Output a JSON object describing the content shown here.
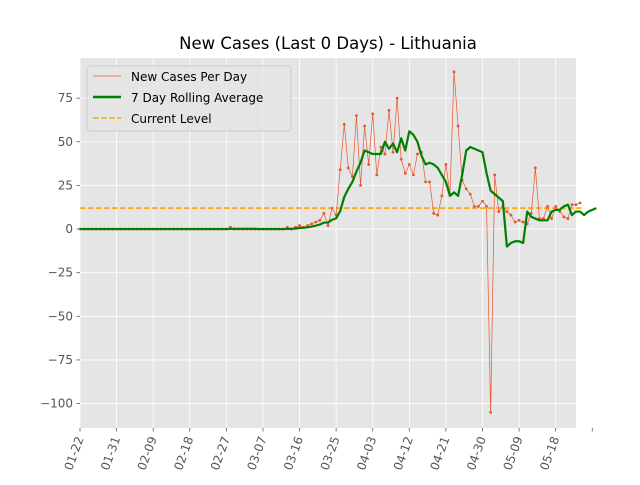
{
  "chart_data": {
    "type": "line",
    "title": "New Cases (Last 0 Days) - Lithuania",
    "xlabel": "",
    "ylabel": "",
    "x_start": "2020-01-22",
    "x_end": "2020-05-20",
    "xlim": [
      "2020-01-22",
      "2020-05-23"
    ],
    "ylim": [
      -114,
      98
    ],
    "grid": true,
    "legend_position": "top-left",
    "x_ticks": [
      "01-22",
      "01-31",
      "02-09",
      "02-18",
      "02-27",
      "03-07",
      "03-16",
      "03-25",
      "04-03",
      "04-12",
      "04-21",
      "04-30",
      "05-09",
      "05-18"
    ],
    "x_tick_dates": [
      "2020-01-22",
      "2020-01-31",
      "2020-02-09",
      "2020-02-18",
      "2020-02-27",
      "2020-03-07",
      "2020-03-16",
      "2020-03-25",
      "2020-04-03",
      "2020-04-12",
      "2020-04-21",
      "2020-04-30",
      "2020-05-09",
      "2020-05-18"
    ],
    "y_ticks": [
      -100,
      -75,
      -50,
      -25,
      0,
      25,
      50,
      75
    ],
    "y_tick_labels": [
      "−100",
      "−75",
      "−50",
      "−25",
      "0",
      "25",
      "50",
      "75"
    ],
    "current_level": 12,
    "series": [
      {
        "name": "New Cases Per Day",
        "color": "#e8562a",
        "style": "thin-line-with-markers",
        "values": [
          0,
          0,
          0,
          0,
          0,
          0,
          0,
          0,
          0,
          0,
          0,
          0,
          0,
          0,
          0,
          0,
          0,
          0,
          0,
          0,
          0,
          0,
          0,
          0,
          0,
          0,
          0,
          0,
          0,
          0,
          0,
          0,
          0,
          0,
          0,
          0,
          0,
          1,
          0,
          0,
          0,
          0,
          0,
          0,
          0,
          0,
          0,
          0,
          0,
          0,
          0,
          1,
          0,
          1,
          2,
          1,
          2,
          3,
          4,
          5,
          9,
          2,
          12,
          8,
          34,
          60,
          35,
          30,
          65,
          25,
          59,
          37,
          66,
          31,
          47,
          43,
          68,
          44,
          75,
          40,
          32,
          37,
          31,
          43,
          44,
          27,
          27,
          9,
          8,
          19,
          37,
          20,
          90,
          59,
          28,
          23,
          20,
          13,
          13,
          16,
          13,
          -105,
          31,
          10,
          13,
          10,
          8,
          4,
          5,
          4,
          3,
          9,
          35,
          6,
          6,
          13,
          6,
          13,
          10,
          7,
          6,
          14,
          14,
          15
        ]
      },
      {
        "name": "7 Day Rolling Average",
        "color": "#008000",
        "style": "thick-line",
        "values": [
          0,
          0,
          0,
          0,
          0,
          0,
          0,
          0,
          0,
          0,
          0,
          0,
          0,
          0,
          0,
          0,
          0,
          0,
          0,
          0,
          0,
          0,
          0,
          0,
          0,
          0,
          0,
          0,
          0,
          0,
          0,
          0,
          0,
          0,
          0,
          0,
          0,
          0.1,
          0.1,
          0.1,
          0.1,
          0.1,
          0.1,
          0.1,
          0,
          0,
          0,
          0,
          0,
          0,
          0,
          0.1,
          0.1,
          0.3,
          0.6,
          0.7,
          1,
          1.4,
          1.9,
          2.6,
          3.7,
          3.7,
          5.3,
          6.1,
          10.3,
          18.4,
          23.1,
          27,
          33,
          38,
          45,
          44,
          43,
          43,
          43,
          50,
          46,
          49,
          44,
          52,
          45,
          56,
          54,
          50,
          42,
          37,
          38,
          37,
          35,
          31,
          27,
          19,
          21,
          19,
          31,
          45,
          47,
          46,
          45,
          44,
          32,
          22,
          20,
          18,
          16,
          -10,
          -8,
          -7,
          -7,
          -8,
          10,
          7,
          6,
          5,
          5,
          5,
          10,
          11,
          11,
          13,
          14,
          8,
          10,
          10,
          8,
          10,
          11,
          12
        ]
      },
      {
        "name": "Current Level",
        "color": "#ffa500",
        "style": "dashed",
        "values": [
          12,
          12,
          12,
          12,
          12,
          12,
          12,
          12,
          12,
          12,
          12,
          12,
          12,
          12,
          12,
          12,
          12,
          12,
          12,
          12,
          12,
          12,
          12,
          12,
          12,
          12,
          12,
          12,
          12,
          12,
          12,
          12,
          12,
          12,
          12,
          12,
          12,
          12,
          12,
          12,
          12,
          12,
          12,
          12,
          12,
          12,
          12,
          12,
          12,
          12,
          12,
          12,
          12,
          12,
          12,
          12,
          12,
          12,
          12,
          12,
          12,
          12,
          12,
          12,
          12,
          12,
          12,
          12,
          12,
          12,
          12,
          12,
          12,
          12,
          12,
          12,
          12,
          12,
          12,
          12,
          12,
          12,
          12,
          12,
          12,
          12,
          12,
          12,
          12,
          12,
          12,
          12,
          12,
          12,
          12,
          12,
          12,
          12,
          12,
          12,
          12,
          12,
          12,
          12,
          12,
          12,
          12,
          12,
          12,
          12,
          12,
          12,
          12,
          12,
          12,
          12,
          12,
          12,
          12,
          12,
          12,
          12,
          12,
          12,
          12
        ]
      }
    ]
  }
}
